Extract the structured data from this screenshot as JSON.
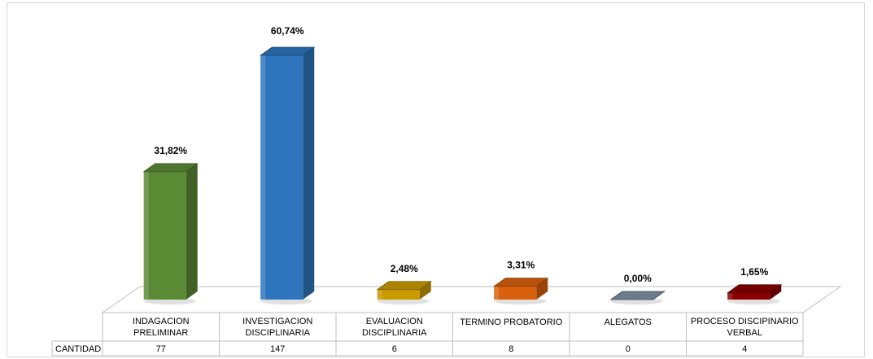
{
  "chart_data": {
    "type": "bar",
    "categories": [
      [
        "INDAGACION",
        "PRELIMINAR"
      ],
      [
        "INVESTIGACION",
        "DISCIPLINARIA"
      ],
      [
        "EVALUACION",
        "DISCIPLINARIA"
      ],
      [
        "TERMINO PROBATORIO"
      ],
      [
        "ALEGATOS"
      ],
      [
        "PROCESO DISCIPINARIO",
        "VERBAL"
      ]
    ],
    "series": [
      {
        "name": "CANTIDAD",
        "values": [
          77,
          147,
          6,
          8,
          0,
          4
        ],
        "labels": [
          "31,82%",
          "60,74%",
          "2,48%",
          "3,31%",
          "0,00%",
          "1,65%"
        ],
        "percent": [
          31.82,
          60.74,
          2.48,
          3.31,
          0.0,
          1.65
        ]
      }
    ],
    "colors": [
      "#5b8a35",
      "#2e75bd",
      "#c99a00",
      "#d9600c",
      "#6b7b8e",
      "#8b0000"
    ],
    "ylim": [
      0,
      147
    ],
    "grid": false,
    "legend": "none",
    "data_table": true
  }
}
